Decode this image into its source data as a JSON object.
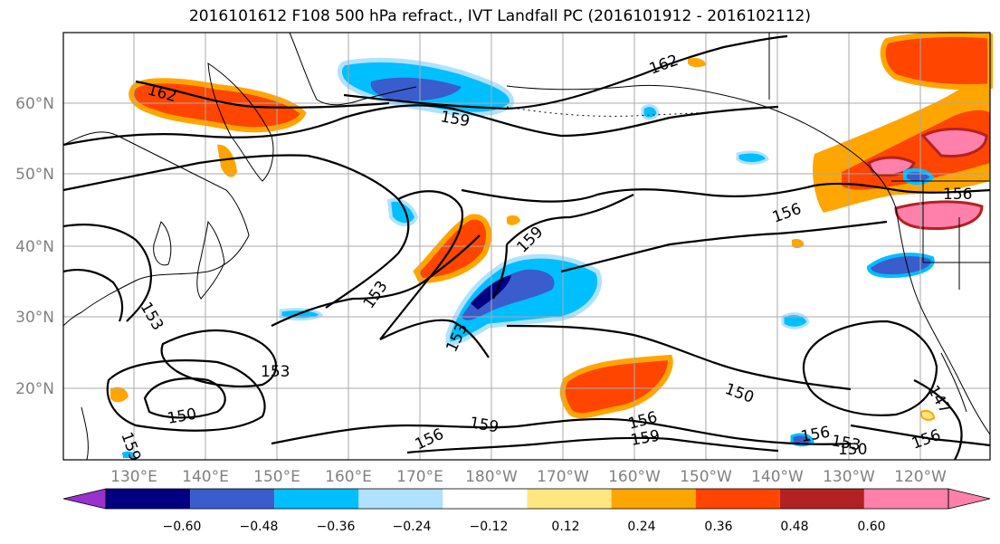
{
  "title": "2016101612 F108 500 hPa refract., IVT Landfall PC (2016101912 - 2016102112)",
  "latitude_labels": [
    "60°N",
    "50°N",
    "40°N",
    "30°N",
    "20°N"
  ],
  "longitude_labels": [
    "130°E",
    "140°E",
    "150°E",
    "160°E",
    "170°E",
    "180°W",
    "170°W",
    "160°W",
    "150°W",
    "140°W",
    "130°W",
    "120°W"
  ],
  "colorbar": {
    "ticks": [
      "−0.60",
      "−0.48",
      "−0.36",
      "−0.24",
      "−0.12",
      "0.12",
      "0.24",
      "0.36",
      "0.48",
      "0.60"
    ],
    "colors": {
      "under": "#9932cc",
      "bins": [
        "#000080",
        "#3a5ccc",
        "#00bfff",
        "#b0e2ff",
        "#ffffff",
        "#ffe680",
        "#ffa500",
        "#ff4500",
        "#b22222",
        "#ff80aa"
      ],
      "over": "#ff80aa"
    }
  },
  "contour_labels": [
    "162",
    "162",
    "159",
    "156",
    "159",
    "153",
    "153",
    "153",
    "150",
    "153",
    "156",
    "159",
    "156",
    "159",
    "150",
    "156",
    "153",
    "150",
    "156",
    "147",
    "156",
    "159"
  ],
  "colors": {
    "contour": "#000000",
    "coastline": "#000000",
    "grid": "#aaaaaa",
    "positive_fill": "#ff4500",
    "negative_fill": "#3a5ccc"
  }
}
